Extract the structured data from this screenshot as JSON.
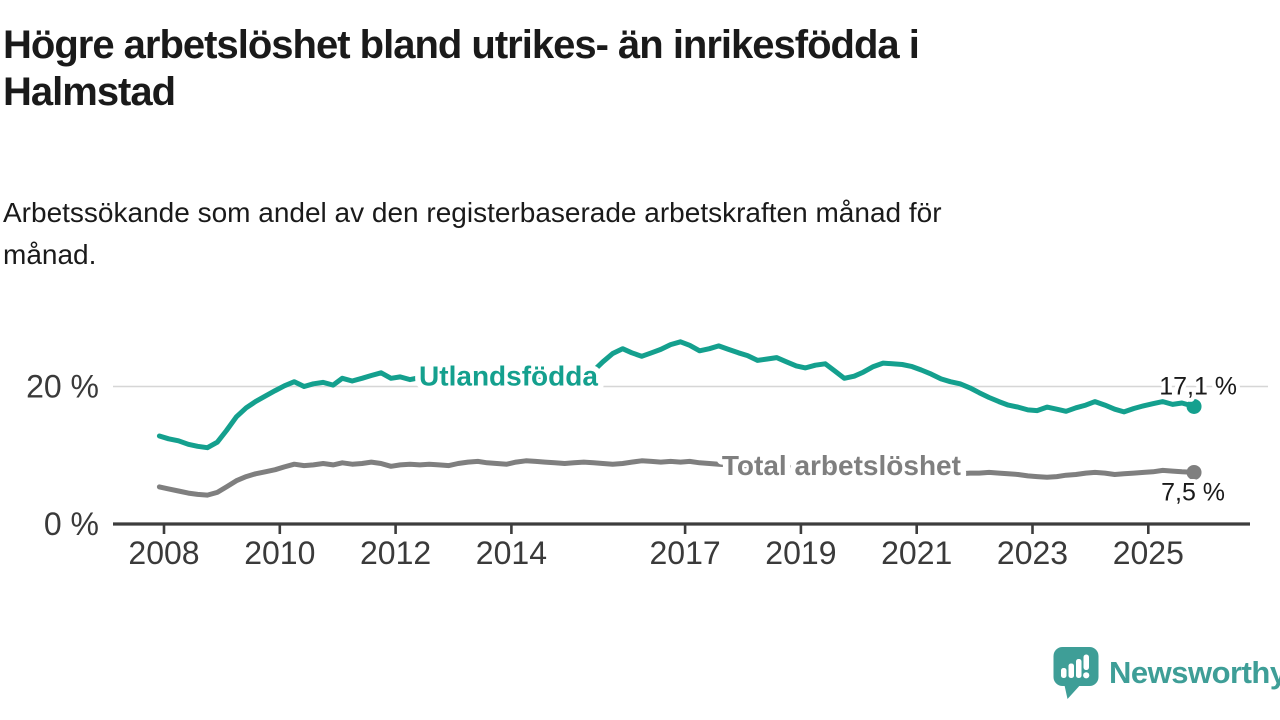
{
  "header": {
    "title": "Högre arbetslöshet bland utrikes- än inrikesfödda i Halmstad",
    "title_lines": [
      "Högre arbetslöshet bland utrikes- än inrikesfödda i",
      "Halmstad"
    ],
    "subtitle": "Arbetssökande som andel av den registerbaserade arbetskraften månad för månad.",
    "subtitle_lines": [
      "Arbetssökande som andel av den registerbaserade arbetskraften månad för",
      "månad."
    ]
  },
  "chart_data": {
    "type": "line",
    "unit": "%",
    "title": "Högre arbetslöshet bland utrikes- än inrikesfödda i Halmstad",
    "xlabel": "",
    "ylabel": "",
    "x_range": [
      2007.1,
      2026.8
    ],
    "ylim": [
      0,
      27
    ],
    "gridline_value": 20,
    "x_ticks": [
      2008,
      2010,
      2012,
      2014,
      2017,
      2019,
      2021,
      2023,
      2025
    ],
    "y_ticks": [
      {
        "value": 20,
        "label": "20 %"
      },
      {
        "value": 0,
        "label": "0 %"
      }
    ],
    "legend_position": "inline-labels",
    "colors": {
      "grid": "#d6d6d6",
      "axis": "#3d3d3d",
      "text": "#3a3a3a",
      "value_label": "#1a1a1a"
    },
    "series": [
      {
        "id": "utlandsfodda",
        "name": "Utlandsfödda",
        "color": "#14a08e",
        "end_label": "17,1 %",
        "end_value": 17.1,
        "end_label_position": "above",
        "label_at": [
          2013.95,
          21.6
        ],
        "points": [
          [
            2007.92,
            12.8
          ],
          [
            2008.08,
            12.4
          ],
          [
            2008.25,
            12.1
          ],
          [
            2008.42,
            11.6
          ],
          [
            2008.58,
            11.3
          ],
          [
            2008.75,
            11.1
          ],
          [
            2008.92,
            11.9
          ],
          [
            2009.08,
            13.6
          ],
          [
            2009.25,
            15.6
          ],
          [
            2009.42,
            16.9
          ],
          [
            2009.58,
            17.8
          ],
          [
            2009.75,
            18.6
          ],
          [
            2009.92,
            19.4
          ],
          [
            2010.08,
            20.1
          ],
          [
            2010.25,
            20.7
          ],
          [
            2010.42,
            20.0
          ],
          [
            2010.58,
            20.4
          ],
          [
            2010.75,
            20.6
          ],
          [
            2010.92,
            20.2
          ],
          [
            2011.08,
            21.2
          ],
          [
            2011.25,
            20.8
          ],
          [
            2011.42,
            21.2
          ],
          [
            2011.58,
            21.6
          ],
          [
            2011.75,
            22.0
          ],
          [
            2011.92,
            21.2
          ],
          [
            2012.08,
            21.4
          ],
          [
            2012.25,
            21.0
          ],
          [
            2012.42,
            21.3
          ],
          [
            2012.58,
            21.1
          ],
          [
            2012.75,
            20.8
          ],
          [
            2012.92,
            20.5
          ],
          [
            2013.08,
            20.7
          ],
          [
            2013.25,
            21.0
          ],
          [
            2013.42,
            21.2
          ],
          [
            2013.58,
            20.9
          ],
          [
            2013.75,
            20.7
          ],
          [
            2013.92,
            20.5
          ],
          [
            2014.08,
            20.7
          ],
          [
            2014.25,
            21.0
          ],
          [
            2014.42,
            21.1
          ],
          [
            2014.58,
            20.8
          ],
          [
            2014.75,
            20.6
          ],
          [
            2014.92,
            20.4
          ],
          [
            2015.08,
            20.7
          ],
          [
            2015.25,
            21.2
          ],
          [
            2015.42,
            22.3
          ],
          [
            2015.58,
            23.6
          ],
          [
            2015.75,
            24.8
          ],
          [
            2015.92,
            25.5
          ],
          [
            2016.08,
            24.9
          ],
          [
            2016.25,
            24.4
          ],
          [
            2016.42,
            24.9
          ],
          [
            2016.58,
            25.4
          ],
          [
            2016.75,
            26.1
          ],
          [
            2016.92,
            26.5
          ],
          [
            2017.08,
            26.0
          ],
          [
            2017.25,
            25.2
          ],
          [
            2017.42,
            25.5
          ],
          [
            2017.58,
            25.9
          ],
          [
            2017.75,
            25.4
          ],
          [
            2017.92,
            24.9
          ],
          [
            2018.08,
            24.5
          ],
          [
            2018.25,
            23.8
          ],
          [
            2018.42,
            24.0
          ],
          [
            2018.58,
            24.2
          ],
          [
            2018.75,
            23.6
          ],
          [
            2018.92,
            23.0
          ],
          [
            2019.08,
            22.7
          ],
          [
            2019.25,
            23.1
          ],
          [
            2019.42,
            23.3
          ],
          [
            2019.58,
            22.3
          ],
          [
            2019.75,
            21.2
          ],
          [
            2019.92,
            21.5
          ],
          [
            2020.08,
            22.1
          ],
          [
            2020.25,
            22.9
          ],
          [
            2020.42,
            23.4
          ],
          [
            2020.58,
            23.3
          ],
          [
            2020.75,
            23.2
          ],
          [
            2020.92,
            22.9
          ],
          [
            2021.08,
            22.4
          ],
          [
            2021.25,
            21.8
          ],
          [
            2021.42,
            21.1
          ],
          [
            2021.58,
            20.7
          ],
          [
            2021.75,
            20.4
          ],
          [
            2021.92,
            19.8
          ],
          [
            2022.08,
            19.1
          ],
          [
            2022.25,
            18.4
          ],
          [
            2022.42,
            17.8
          ],
          [
            2022.58,
            17.3
          ],
          [
            2022.75,
            17.0
          ],
          [
            2022.92,
            16.6
          ],
          [
            2023.08,
            16.5
          ],
          [
            2023.25,
            17.0
          ],
          [
            2023.42,
            16.7
          ],
          [
            2023.58,
            16.4
          ],
          [
            2023.75,
            16.9
          ],
          [
            2023.92,
            17.3
          ],
          [
            2024.08,
            17.8
          ],
          [
            2024.25,
            17.3
          ],
          [
            2024.42,
            16.7
          ],
          [
            2024.58,
            16.3
          ],
          [
            2024.75,
            16.8
          ],
          [
            2024.92,
            17.2
          ],
          [
            2025.08,
            17.5
          ],
          [
            2025.25,
            17.8
          ],
          [
            2025.42,
            17.4
          ],
          [
            2025.58,
            17.6
          ],
          [
            2025.79,
            17.1
          ]
        ]
      },
      {
        "id": "total",
        "name": "Total arbetslöshet",
        "color": "#7f7f7f",
        "end_label": "7,5 %",
        "end_value": 7.5,
        "end_label_position": "below",
        "label_at": [
          2019.7,
          8.6
        ],
        "points": [
          [
            2007.92,
            5.4
          ],
          [
            2008.08,
            5.1
          ],
          [
            2008.25,
            4.8
          ],
          [
            2008.42,
            4.5
          ],
          [
            2008.58,
            4.3
          ],
          [
            2008.75,
            4.2
          ],
          [
            2008.92,
            4.6
          ],
          [
            2009.08,
            5.4
          ],
          [
            2009.25,
            6.3
          ],
          [
            2009.42,
            6.9
          ],
          [
            2009.58,
            7.3
          ],
          [
            2009.75,
            7.6
          ],
          [
            2009.92,
            7.9
          ],
          [
            2010.08,
            8.3
          ],
          [
            2010.25,
            8.7
          ],
          [
            2010.42,
            8.5
          ],
          [
            2010.58,
            8.6
          ],
          [
            2010.75,
            8.8
          ],
          [
            2010.92,
            8.6
          ],
          [
            2011.08,
            8.9
          ],
          [
            2011.25,
            8.7
          ],
          [
            2011.42,
            8.8
          ],
          [
            2011.58,
            9.0
          ],
          [
            2011.75,
            8.8
          ],
          [
            2011.92,
            8.4
          ],
          [
            2012.08,
            8.6
          ],
          [
            2012.25,
            8.7
          ],
          [
            2012.42,
            8.6
          ],
          [
            2012.58,
            8.7
          ],
          [
            2012.75,
            8.6
          ],
          [
            2012.92,
            8.5
          ],
          [
            2013.08,
            8.8
          ],
          [
            2013.25,
            9.0
          ],
          [
            2013.42,
            9.1
          ],
          [
            2013.58,
            8.9
          ],
          [
            2013.75,
            8.8
          ],
          [
            2013.92,
            8.7
          ],
          [
            2014.08,
            9.0
          ],
          [
            2014.25,
            9.2
          ],
          [
            2014.42,
            9.1
          ],
          [
            2014.58,
            9.0
          ],
          [
            2014.75,
            8.9
          ],
          [
            2014.92,
            8.8
          ],
          [
            2015.08,
            8.9
          ],
          [
            2015.25,
            9.0
          ],
          [
            2015.42,
            8.9
          ],
          [
            2015.58,
            8.8
          ],
          [
            2015.75,
            8.7
          ],
          [
            2015.92,
            8.8
          ],
          [
            2016.08,
            9.0
          ],
          [
            2016.25,
            9.2
          ],
          [
            2016.42,
            9.1
          ],
          [
            2016.58,
            9.0
          ],
          [
            2016.75,
            9.1
          ],
          [
            2016.92,
            9.0
          ],
          [
            2017.08,
            9.1
          ],
          [
            2017.25,
            8.9
          ],
          [
            2017.42,
            8.8
          ],
          [
            2017.58,
            8.7
          ],
          [
            2017.75,
            8.6
          ],
          [
            2017.92,
            8.5
          ],
          [
            2018.25,
            8.4
          ],
          [
            2018.58,
            8.3
          ],
          [
            2018.92,
            8.2
          ],
          [
            2019.25,
            8.1
          ],
          [
            2019.58,
            8.0
          ],
          [
            2019.92,
            8.2
          ],
          [
            2020.25,
            8.8
          ],
          [
            2020.58,
            8.9
          ],
          [
            2020.92,
            8.5
          ],
          [
            2021.08,
            8.1
          ],
          [
            2021.25,
            7.7
          ],
          [
            2021.42,
            7.5
          ],
          [
            2021.58,
            7.4
          ],
          [
            2021.75,
            7.3
          ],
          [
            2021.92,
            7.4
          ],
          [
            2022.08,
            7.4
          ],
          [
            2022.25,
            7.5
          ],
          [
            2022.42,
            7.4
          ],
          [
            2022.58,
            7.3
          ],
          [
            2022.75,
            7.2
          ],
          [
            2022.92,
            7.0
          ],
          [
            2023.08,
            6.9
          ],
          [
            2023.25,
            6.8
          ],
          [
            2023.42,
            6.9
          ],
          [
            2023.58,
            7.1
          ],
          [
            2023.75,
            7.2
          ],
          [
            2023.92,
            7.4
          ],
          [
            2024.08,
            7.5
          ],
          [
            2024.25,
            7.4
          ],
          [
            2024.42,
            7.2
          ],
          [
            2024.58,
            7.3
          ],
          [
            2024.75,
            7.4
          ],
          [
            2024.92,
            7.5
          ],
          [
            2025.08,
            7.6
          ],
          [
            2025.25,
            7.8
          ],
          [
            2025.42,
            7.7
          ],
          [
            2025.58,
            7.6
          ],
          [
            2025.79,
            7.5
          ]
        ]
      }
    ]
  },
  "footer": {
    "brand": "Newsworthy",
    "brand_color": "#3e9e97",
    "logo_icon": "newsworthy-speech-bubble-bar-chart-icon"
  }
}
